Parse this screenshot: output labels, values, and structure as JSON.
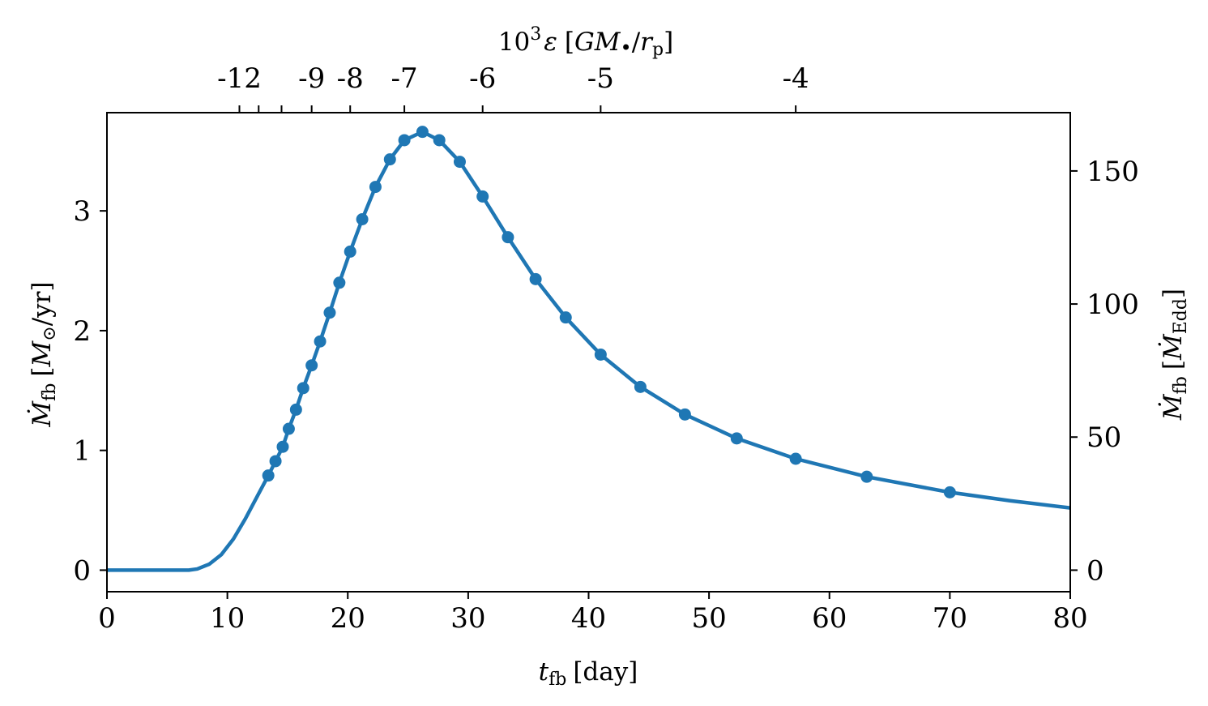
{
  "chart_data": {
    "type": "line",
    "title": "",
    "xlabel": "t_fb [day]",
    "xlabel_parts": {
      "sym": "t",
      "sub": "fb",
      "unit": "[day]"
    },
    "ylabel_left": "Ṁ_fb [M_⊙/yr]",
    "ylabel_left_parts": {
      "sym": "Ṁ",
      "sub": "fb",
      "unit_open": "[",
      "unit_sym": "M",
      "unit_sub": "⊙",
      "unit_close": "/yr]"
    },
    "ylabel_right": "Ṁ_fb [Ṁ_Edd]",
    "ylabel_right_parts": {
      "sym": "Ṁ",
      "sub": "fb",
      "unit_open": "[",
      "unit_sym": "Ṁ",
      "unit_sub": "Edd",
      "unit_close": "]"
    },
    "top_label": "10^3 ε [GM•/r_p]",
    "top_label_parts": {
      "base": "10",
      "sup": "3",
      "eps": "ε",
      "open": "[",
      "gm": "GM",
      "bh": "•",
      "slash": "/",
      "r": "r",
      "rsub": "p",
      "close": "]"
    },
    "xlim": [
      0,
      80
    ],
    "ylim": [
      -0.18,
      3.82
    ],
    "right_ylim": [
      -8.1,
      171.9
    ],
    "xticks": [
      0,
      10,
      20,
      30,
      40,
      50,
      60,
      70,
      80
    ],
    "yticks_left": [
      0,
      1,
      2,
      3
    ],
    "yticks_right": [
      0,
      50,
      100,
      150
    ],
    "top_ticks": [
      {
        "label": "-12",
        "x": 11.0
      },
      {
        "label": "",
        "x": 12.6
      },
      {
        "label": "",
        "x": 14.5
      },
      {
        "label": "-9",
        "x": 17.0
      },
      {
        "label": "-8",
        "x": 20.2
      },
      {
        "label": "-7",
        "x": 24.7
      },
      {
        "label": "-6",
        "x": 31.2
      },
      {
        "label": "-5",
        "x": 41.0
      },
      {
        "label": "-4",
        "x": 57.2
      }
    ],
    "color": "#1f77b4",
    "curve": {
      "x": [
        0,
        6.8,
        7.5,
        8.5,
        9.5,
        10.5,
        11.5,
        12.5,
        13.4,
        14.0,
        14.6,
        15.1,
        15.7,
        16.3,
        17.0,
        17.7,
        18.5,
        19.3,
        20.2,
        21.2,
        22.3,
        23.5,
        24.7,
        26.2,
        27.6,
        29.3,
        31.2,
        33.3,
        35.6,
        38.1,
        41.0,
        44.3,
        48.0,
        52.3,
        57.2,
        63.1,
        70.0,
        75.0,
        80.0
      ],
      "y": [
        0.0,
        0.0,
        0.01,
        0.05,
        0.13,
        0.26,
        0.43,
        0.62,
        0.79,
        0.91,
        1.03,
        1.18,
        1.34,
        1.52,
        1.71,
        1.91,
        2.15,
        2.4,
        2.66,
        2.93,
        3.2,
        3.43,
        3.59,
        3.66,
        3.59,
        3.41,
        3.12,
        2.78,
        2.43,
        2.11,
        1.8,
        1.53,
        1.3,
        1.1,
        0.93,
        0.78,
        0.65,
        0.58,
        0.52
      ]
    },
    "points": {
      "x": [
        13.4,
        14.0,
        14.6,
        15.1,
        15.7,
        16.3,
        17.0,
        17.7,
        18.5,
        19.3,
        20.2,
        21.2,
        22.3,
        23.5,
        24.7,
        26.2,
        27.6,
        29.3,
        31.2,
        33.3,
        35.6,
        38.1,
        41.0,
        44.3,
        48.0,
        52.3,
        57.2,
        63.1,
        70.0
      ],
      "y": [
        0.79,
        0.91,
        1.03,
        1.18,
        1.34,
        1.52,
        1.71,
        1.91,
        2.15,
        2.4,
        2.66,
        2.93,
        3.2,
        3.43,
        3.59,
        3.66,
        3.59,
        3.41,
        3.12,
        2.78,
        2.43,
        2.11,
        1.8,
        1.53,
        1.3,
        1.1,
        0.93,
        0.78,
        0.65
      ]
    }
  }
}
